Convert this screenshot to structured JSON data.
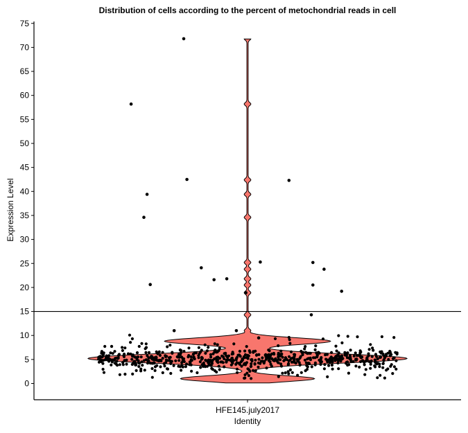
{
  "chart_data": {
    "type": "violin",
    "title": "Distribution of cells according to the percent of metochondrial reads in cell",
    "xlabel": "Identity",
    "ylabel": "Expression Level",
    "categories": [
      "HFE145.july2017"
    ],
    "ylim": [
      -3.5,
      75.5
    ],
    "yticks": [
      0,
      5,
      10,
      15,
      20,
      25,
      30,
      35,
      40,
      45,
      50,
      55,
      60,
      65,
      70,
      75
    ],
    "threshold_line": 15,
    "fill_color": "#F8766D",
    "point_color": "#000000",
    "grid": false,
    "legend": "none",
    "main_points_count": 700,
    "main_points_median": 5.2,
    "outliers": [
      {
        "jitter": -0.4,
        "y": 71.8
      },
      {
        "jitter": -0.73,
        "y": 58.2
      },
      {
        "jitter": -0.63,
        "y": 39.4
      },
      {
        "jitter": -0.65,
        "y": 34.6
      },
      {
        "jitter": -0.38,
        "y": 42.5
      },
      {
        "jitter": 0.26,
        "y": 42.3
      },
      {
        "jitter": -0.29,
        "y": 24.1
      },
      {
        "jitter": -0.21,
        "y": 21.6
      },
      {
        "jitter": -0.13,
        "y": 21.8
      },
      {
        "jitter": 0.08,
        "y": 25.3
      },
      {
        "jitter": 0.41,
        "y": 25.2
      },
      {
        "jitter": 0.48,
        "y": 23.8
      },
      {
        "jitter": 0.41,
        "y": 20.5
      },
      {
        "jitter": 0.59,
        "y": 19.2
      },
      {
        "jitter": -0.61,
        "y": 20.6
      },
      {
        "jitter": -0.01,
        "y": 18.9
      },
      {
        "jitter": 0.4,
        "y": 14.3
      },
      {
        "jitter": -0.46,
        "y": 11.0
      },
      {
        "jitter": 0.07,
        "y": 9.5
      },
      {
        "jitter": -0.07,
        "y": 11.0
      }
    ]
  }
}
